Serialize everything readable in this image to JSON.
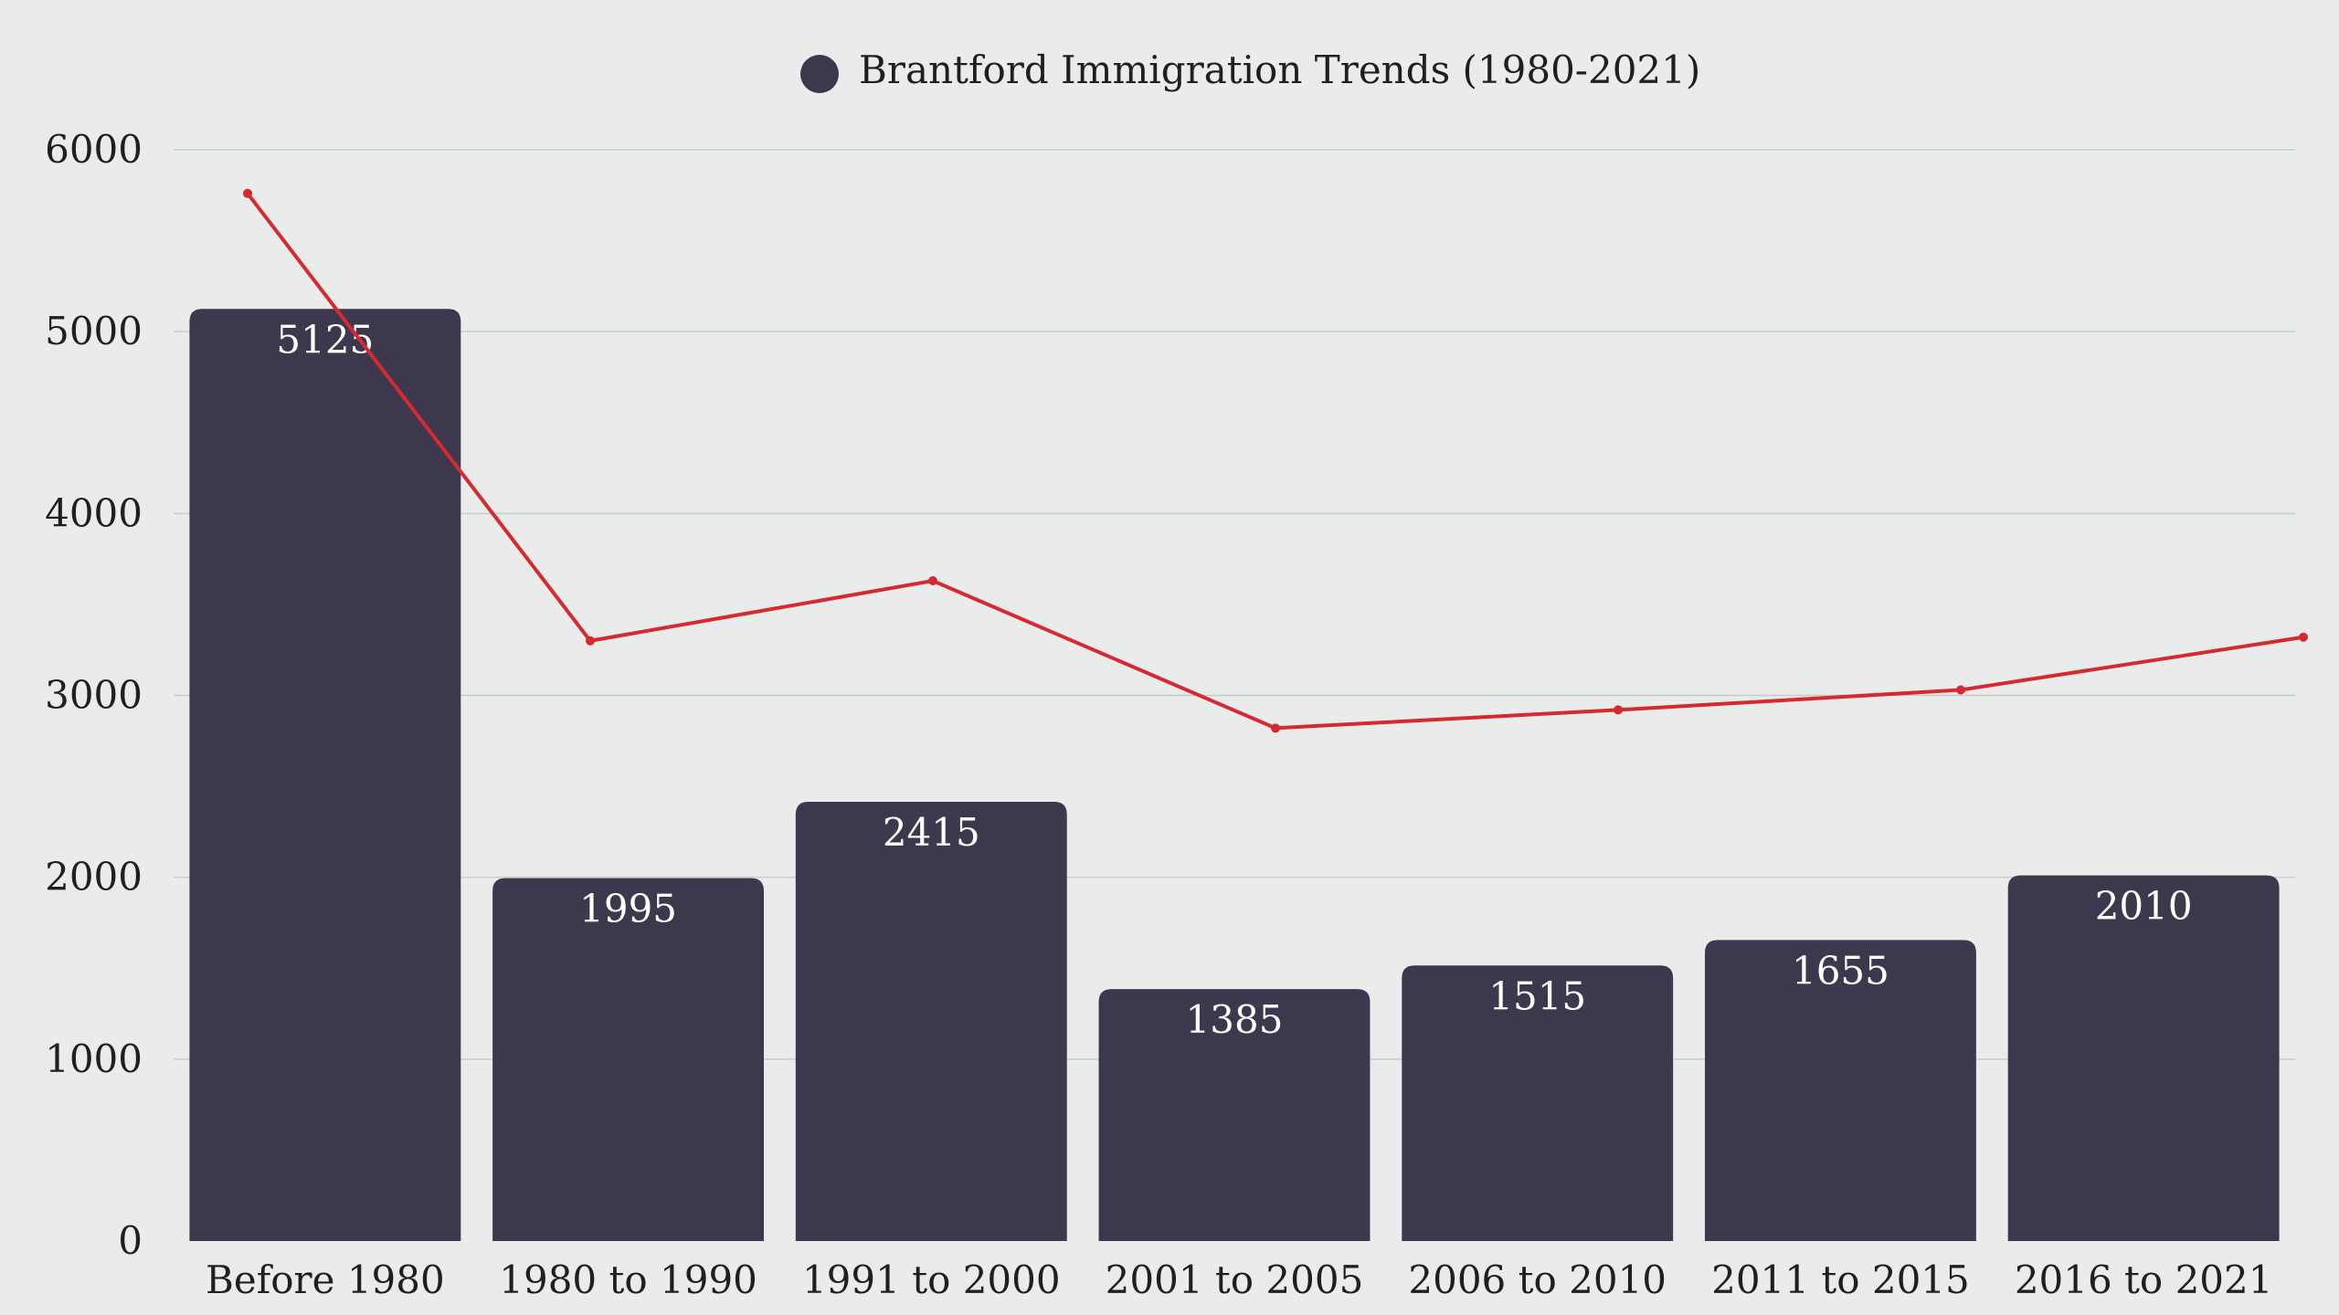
{
  "chart_data": {
    "type": "bar",
    "title": "",
    "xlabel": "",
    "ylabel": "",
    "legend_position": "top-center",
    "grid": true,
    "ylim": [
      0,
      6000
    ],
    "yticks": [
      "6000",
      "5000",
      "4000",
      "3000",
      "2000",
      "1000",
      "0"
    ],
    "categories": [
      "Before 1980",
      "1980 to 1990",
      "1991 to 2000",
      "2001 to 2005",
      "2006 to 2010",
      "2011 to 2015",
      "2016 to 2021"
    ],
    "series": [
      {
        "name": "Brantford Immigration Trends (1980-2021)",
        "kind": "bar",
        "values": [
          5125,
          1995,
          2415,
          1385,
          1515,
          1655,
          2010
        ],
        "value_labels": [
          "5125",
          "1995",
          "2415",
          "1385",
          "1515",
          "1655",
          "2010"
        ]
      },
      {
        "name": "",
        "kind": "line",
        "values": [
          5760,
          3300,
          3630,
          2820,
          2920,
          3030,
          3320
        ]
      }
    ],
    "colors": {
      "background": "#e9ecea",
      "bar": "#3d384e",
      "line": "#d42a30",
      "grid": "#c8ccc9",
      "text": "#1f1f1f",
      "bar_label": "#ffffff"
    }
  }
}
